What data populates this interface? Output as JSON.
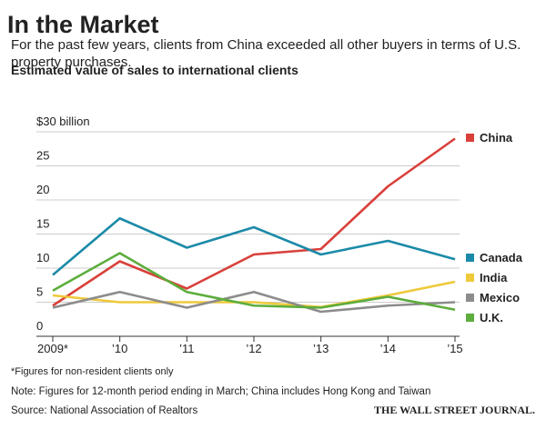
{
  "chart_data": {
    "type": "line",
    "title": "In the Market",
    "subtitle": "For the past few years, clients from China exceeded all other buyers in terms of U.S. property purchases.",
    "chart_title": "Estimated value of sales to international clients",
    "categories": [
      "2009*",
      "’10",
      "’11",
      "’12",
      "’13",
      "’14",
      "’15"
    ],
    "series": [
      {
        "name": "China",
        "color": "#d9403a",
        "values": [
          4.5,
          11,
          7,
          12,
          12.8,
          22,
          29
        ]
      },
      {
        "name": "Canada",
        "color": "#1b8aa8",
        "values": [
          9,
          17.3,
          13,
          16,
          12,
          14,
          11.3
        ]
      },
      {
        "name": "India",
        "color": "#efc93a",
        "values": [
          6,
          5,
          5,
          5,
          4.3,
          6,
          8
        ]
      },
      {
        "name": "Mexico",
        "color": "#8c8c8c",
        "values": [
          4.2,
          6.5,
          4.2,
          6.5,
          3.6,
          4.5,
          5
        ]
      },
      {
        "name": "U.K.",
        "color": "#5cad3c",
        "values": [
          6.7,
          12.2,
          6.5,
          4.5,
          4.2,
          5.8,
          3.9
        ]
      }
    ],
    "ylim": [
      0,
      30
    ],
    "yticks": [
      0,
      5,
      10,
      15,
      20,
      25,
      {
        "value": 30,
        "label": "$30 billion"
      }
    ],
    "grid": true,
    "footnote": "*Figures for non-resident clients only",
    "note": "Note: Figures for 12-month period ending in March;  China includes Hong Kong and Taiwan",
    "source": "Source: National Association of Realtors",
    "credit": "THE WALL STREET JOURNAL."
  }
}
